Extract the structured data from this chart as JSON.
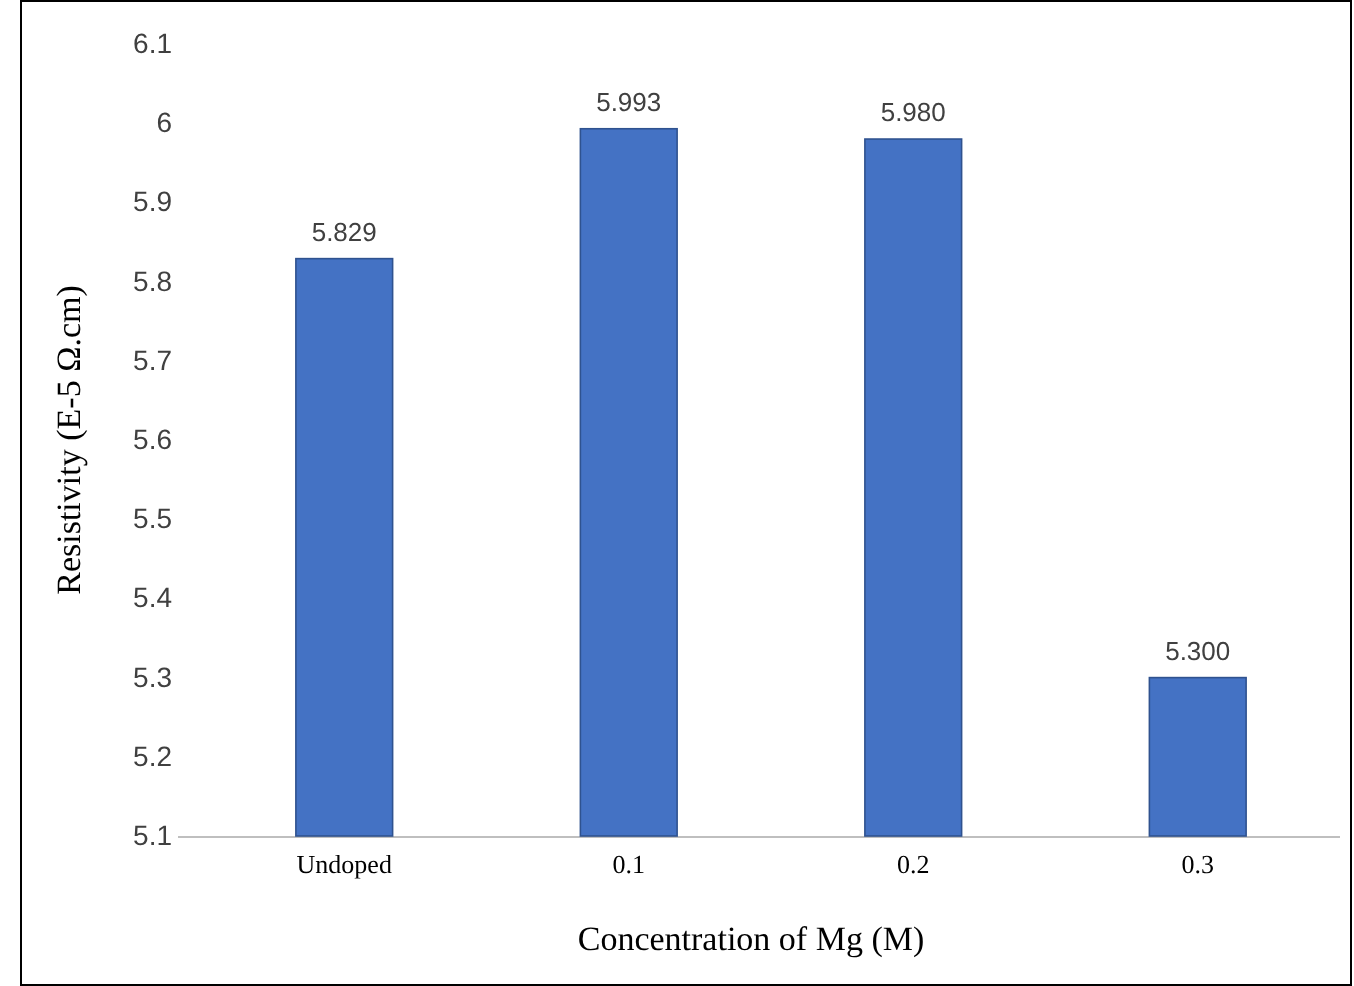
{
  "chart_data": {
    "type": "bar",
    "xlabel": "Concentration of Mg (M)",
    "ylabel": "Resistivity (E-5 Ω.cm)",
    "categories": [
      "Undoped",
      "0.1",
      "0.2",
      "0.3"
    ],
    "values": [
      5.829,
      5.993,
      5.98,
      5.3
    ],
    "color": "#4472c4",
    "value_labels": [
      "5.829",
      "5.993",
      "5.980",
      "5.300"
    ],
    "ylim": [
      5.1,
      6.1
    ],
    "yticks": [
      5.1,
      5.2,
      5.3,
      5.4,
      5.5,
      5.6,
      5.7,
      5.8,
      5.9,
      {
        "value": 6,
        "label": "6"
      },
      6.1
    ],
    "grid": false
  }
}
